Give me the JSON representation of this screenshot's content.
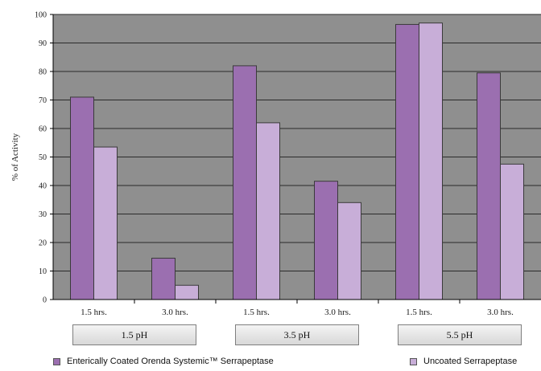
{
  "chart_data": {
    "type": "bar",
    "categories": [
      "1.5 hrs.",
      "3.0 hrs.",
      "1.5 hrs.",
      "3.0 hrs.",
      "1.5 hrs.",
      "3.0 hrs."
    ],
    "groups": [
      "1.5 pH",
      "3.5 pH",
      "5.5 pH"
    ],
    "series": [
      {
        "name": "Enterically Coated Orenda Systemic™ Serrapeptase",
        "color": "#9b6fb0",
        "values": [
          71,
          14.5,
          82,
          41.5,
          96.5,
          79.5
        ]
      },
      {
        "name": "Uncoated Serrapeptase",
        "color": "#c8aed8",
        "values": [
          53.5,
          5,
          62,
          34,
          97,
          47.5
        ]
      }
    ],
    "ylabel": "% of Activity",
    "ylim": [
      0,
      100
    ],
    "yticks": [
      "0",
      "10",
      "20",
      "30",
      "40",
      "50",
      "60",
      "70",
      "80",
      "90",
      "100"
    ],
    "plot_background": "#8f8f8f",
    "grid": true,
    "legend_position": "bottom"
  }
}
